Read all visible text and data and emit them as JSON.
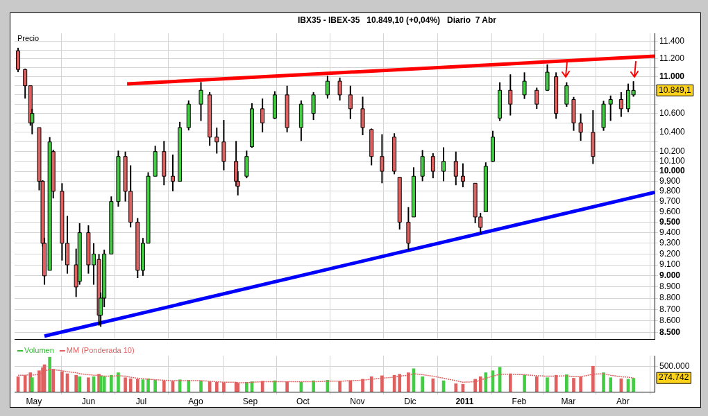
{
  "chart_data": [
    {
      "type": "candlestick",
      "title": "IBX35 - IBEX-35   10.849,10 (+0,04%)   Diario  7 Abr",
      "ylabel": "Precio",
      "x": [
        "2010-04-22",
        "2010-04-26",
        "2010-04-29",
        "2010-04-30",
        "2010-05-04",
        "2010-05-06",
        "2010-05-07",
        "2010-05-10",
        "2010-05-12",
        "2010-05-17",
        "2010-05-20",
        "2010-05-25",
        "2010-05-27",
        "2010-06-01",
        "2010-06-04",
        "2010-06-07",
        "2010-06-08",
        "2010-06-10",
        "2010-06-14",
        "2010-06-18",
        "2010-06-22",
        "2010-06-25",
        "2010-06-29",
        "2010-07-02",
        "2010-07-05",
        "2010-07-09",
        "2010-07-14",
        "2010-07-19",
        "2010-07-23",
        "2010-07-28",
        "2010-08-04",
        "2010-08-09",
        "2010-08-13",
        "2010-08-17",
        "2010-08-24",
        "2010-08-25",
        "2010-08-30",
        "2010-09-02",
        "2010-09-08",
        "2010-09-15",
        "2010-09-22",
        "2010-09-30",
        "2010-10-07",
        "2010-10-15",
        "2010-10-22",
        "2010-10-28",
        "2010-11-04",
        "2010-11-09",
        "2010-11-15",
        "2010-11-22",
        "2010-11-25",
        "2010-11-30",
        "2010-12-03",
        "2010-12-08",
        "2010-12-14",
        "2010-12-20",
        "2010-12-27",
        "2010-12-31",
        "2011-01-07",
        "2011-01-10",
        "2011-01-13",
        "2011-01-17",
        "2011-01-21",
        "2011-01-27",
        "2011-02-04",
        "2011-02-11",
        "2011-02-17",
        "2011-02-22",
        "2011-02-28",
        "2011-03-04",
        "2011-03-08",
        "2011-03-15",
        "2011-03-21",
        "2011-03-25",
        "2011-03-31",
        "2011-04-04",
        "2011-04-07"
      ],
      "ohlc": [
        [
          11290,
          11325,
          11050,
          11080
        ],
        [
          11080,
          11090,
          10760,
          10900
        ],
        [
          10900,
          10900,
          10470,
          10500
        ],
        [
          10500,
          10650,
          10380,
          10600
        ],
        [
          10450,
          10450,
          9810,
          9900
        ],
        [
          9900,
          9910,
          9270,
          9300
        ],
        [
          9300,
          9350,
          8920,
          9000
        ],
        [
          9050,
          10350,
          9050,
          10300
        ],
        [
          10200,
          10220,
          9730,
          9800
        ],
        [
          9800,
          9880,
          9140,
          9300
        ],
        [
          9300,
          9560,
          9020,
          9100
        ],
        [
          9100,
          9250,
          8810,
          8900
        ],
        [
          8950,
          9490,
          8920,
          9400
        ],
        [
          9400,
          9470,
          9020,
          9100
        ],
        [
          9100,
          9300,
          8920,
          9200
        ],
        [
          9150,
          9200,
          8560,
          8650
        ],
        [
          8650,
          8850,
          8550,
          8800
        ],
        [
          8800,
          9240,
          8720,
          9200
        ],
        [
          9200,
          9750,
          9200,
          9700
        ],
        [
          9700,
          10210,
          9650,
          10150
        ],
        [
          10150,
          10200,
          9700,
          9800
        ],
        [
          9800,
          10060,
          9450,
          9500
        ],
        [
          9500,
          9540,
          8980,
          9050
        ],
        [
          9050,
          9350,
          9000,
          9300
        ],
        [
          9300,
          9990,
          9300,
          9950
        ],
        [
          9950,
          10260,
          9950,
          10200
        ],
        [
          10200,
          10310,
          9860,
          9950
        ],
        [
          9950,
          10170,
          9800,
          9900
        ],
        [
          9900,
          10510,
          9900,
          10450
        ],
        [
          10450,
          10740,
          10420,
          10700
        ],
        [
          10700,
          10940,
          10520,
          10850
        ],
        [
          10800,
          10830,
          10260,
          10350
        ],
        [
          10350,
          10450,
          10180,
          10300
        ],
        [
          10300,
          10530,
          10010,
          10100
        ],
        [
          10100,
          10310,
          9850,
          9900
        ],
        [
          9900,
          10000,
          9760,
          9850
        ],
        [
          9950,
          10210,
          9930,
          10150
        ],
        [
          10250,
          10710,
          10240,
          10650
        ],
        [
          10650,
          10760,
          10400,
          10500
        ],
        [
          10550,
          10840,
          10540,
          10800
        ],
        [
          10800,
          10900,
          10400,
          10450
        ],
        [
          10450,
          10740,
          10310,
          10700
        ],
        [
          10600,
          10830,
          10530,
          10800
        ],
        [
          10800,
          11010,
          10760,
          10950
        ],
        [
          10950,
          10990,
          10740,
          10800
        ],
        [
          10800,
          10900,
          10540,
          10650
        ],
        [
          10650,
          10780,
          10370,
          10450
        ],
        [
          10430,
          10440,
          10060,
          10150
        ],
        [
          10150,
          10380,
          9880,
          10000
        ],
        [
          10350,
          10390,
          9970,
          10000
        ],
        [
          9940,
          9940,
          9430,
          9500
        ],
        [
          9500,
          9645,
          9235,
          9300
        ],
        [
          9550,
          10040,
          9550,
          9950
        ],
        [
          9950,
          10216,
          9900,
          10150
        ],
        [
          10150,
          10183,
          9930,
          10000
        ],
        [
          10000,
          10244,
          9900,
          10100
        ],
        [
          10100,
          10200,
          9860,
          9950
        ],
        [
          9950,
          10080,
          9840,
          9900
        ],
        [
          9880,
          9880,
          9490,
          9550
        ],
        [
          9550,
          9590,
          9390,
          9450
        ],
        [
          9600,
          10090,
          9600,
          10050
        ],
        [
          10100,
          10416,
          10094,
          10350
        ],
        [
          10550,
          10938,
          10521,
          10850
        ],
        [
          10850,
          11026,
          10578,
          10700
        ],
        [
          10800,
          11048,
          10756,
          10950
        ],
        [
          10850,
          10879,
          10649,
          10700
        ],
        [
          10850,
          11137,
          10843,
          11050
        ],
        [
          11000,
          11048,
          10543,
          10600
        ],
        [
          10700,
          10938,
          10671,
          10900
        ],
        [
          10750,
          10778,
          10416,
          10500
        ],
        [
          10500,
          10599,
          10312,
          10400
        ],
        [
          10400,
          10635,
          10074,
          10150
        ],
        [
          10450,
          10735,
          10416,
          10700
        ],
        [
          10700,
          10793,
          10521,
          10750
        ],
        [
          10750,
          10829,
          10563,
          10650
        ],
        [
          10650,
          10923,
          10613,
          10850
        ],
        [
          10800,
          10950,
          10780,
          10849.1
        ]
      ],
      "colors": [
        "#e06060",
        "#e06060",
        "#e06060",
        "#44cc44",
        "#e06060",
        "#e06060",
        "#e06060",
        "#44cc44",
        "#e06060",
        "#e06060",
        "#e06060",
        "#e06060",
        "#44cc44",
        "#e06060",
        "#44cc44",
        "#e06060",
        "#44cc44",
        "#44cc44",
        "#44cc44",
        "#44cc44",
        "#e06060",
        "#e06060",
        "#e06060",
        "#44cc44",
        "#44cc44",
        "#44cc44",
        "#e06060",
        "#e06060",
        "#44cc44",
        "#44cc44",
        "#44cc44",
        "#e06060",
        "#e06060",
        "#e06060",
        "#e06060",
        "#e06060",
        "#44cc44",
        "#44cc44",
        "#e06060",
        "#44cc44",
        "#e06060",
        "#44cc44",
        "#44cc44",
        "#44cc44",
        "#e06060",
        "#e06060",
        "#e06060",
        "#e06060",
        "#e06060",
        "#e06060",
        "#e06060",
        "#e06060",
        "#44cc44",
        "#44cc44",
        "#e06060",
        "#44cc44",
        "#e06060",
        "#e06060",
        "#e06060",
        "#e06060",
        "#44cc44",
        "#44cc44",
        "#44cc44",
        "#e06060",
        "#44cc44",
        "#e06060",
        "#44cc44",
        "#e06060",
        "#44cc44",
        "#e06060",
        "#e06060",
        "#e06060",
        "#44cc44",
        "#44cc44",
        "#e06060",
        "#44cc44",
        "#44cc44"
      ],
      "series": [
        {
          "type": "line",
          "color": "#ff0000",
          "x": [
            "2010-06-23",
            "2011-04-19"
          ],
          "values": [
            10920,
            11230
          ]
        },
        {
          "type": "line",
          "color": "#0000ff",
          "x": [
            "2010-05-07",
            "2011-04-19"
          ],
          "values": [
            8470,
            9790
          ]
        }
      ],
      "xlim": [
        "2010-04-20",
        "2011-04-19"
      ],
      "xticks": [
        {
          "value": "2010-05-01",
          "label": null
        },
        {
          "value": "2010-06-01",
          "label": null
        },
        {
          "value": "2010-07-01",
          "label": null
        },
        {
          "value": "2010-08-01",
          "label": null
        },
        {
          "value": "2010-09-01",
          "label": null
        },
        {
          "value": "2010-10-01",
          "label": null
        },
        {
          "value": "2010-11-01",
          "label": null
        },
        {
          "value": "2010-12-01",
          "label": null
        },
        {
          "value": "2011-01-01",
          "label": null
        },
        {
          "value": "2011-02-01",
          "label": null
        },
        {
          "value": "2011-03-01",
          "label": null
        },
        {
          "value": "2011-04-01",
          "label": null
        }
      ],
      "ylim": [
        8440,
        11490
      ],
      "yticks": [
        {
          "value": 8500,
          "label": "8.500"
        },
        {
          "value": 8600,
          "label": "8.600"
        },
        {
          "value": 8700,
          "label": "8.700"
        },
        {
          "value": 8800,
          "label": "8.800"
        },
        {
          "value": 8900,
          "label": "8.900"
        },
        {
          "value": 9000,
          "label": "9.000"
        },
        {
          "value": 9100,
          "label": "9.100"
        },
        {
          "value": 9200,
          "label": "9.200"
        },
        {
          "value": 9300,
          "label": "9.300"
        },
        {
          "value": 9400,
          "label": "9.400"
        },
        {
          "value": 9500,
          "label": "9.500"
        },
        {
          "value": 9600,
          "label": "9.600"
        },
        {
          "value": 9700,
          "label": "9.700"
        },
        {
          "value": 9800,
          "label": "9.800"
        },
        {
          "value": 9900,
          "label": "9.900"
        },
        {
          "value": 10000,
          "label": "10.000"
        },
        {
          "value": 10100,
          "label": "10.100"
        },
        {
          "value": 10200,
          "label": "10.200"
        },
        {
          "value": 10300,
          "label": null
        },
        {
          "value": 10400,
          "label": "10.400"
        },
        {
          "value": 10500,
          "label": null
        },
        {
          "value": 10600,
          "label": "10.600"
        },
        {
          "value": 10700,
          "label": null
        },
        {
          "value": 10800,
          "label": null
        },
        {
          "value": 10900,
          "label": null
        },
        {
          "value": 11000,
          "label": "11.000"
        },
        {
          "value": 11100,
          "label": null
        },
        {
          "value": 11200,
          "label": "11.200"
        },
        {
          "value": 11300,
          "label": null
        },
        {
          "value": 11400,
          "label": "11.400"
        }
      ],
      "log": true,
      "grid": true,
      "tick_labels": "y",
      "annotations": [
        "10.849,1"
      ]
    },
    {
      "type": "bar",
      "x": [
        "2010-04-22",
        "2010-04-26",
        "2010-04-29",
        "2010-04-30",
        "2010-05-04",
        "2010-05-06",
        "2010-05-07",
        "2010-05-10",
        "2010-05-12",
        "2010-05-17",
        "2010-05-20",
        "2010-05-25",
        "2010-05-27",
        "2010-06-01",
        "2010-06-04",
        "2010-06-07",
        "2010-06-08",
        "2010-06-10",
        "2010-06-14",
        "2010-06-18",
        "2010-06-22",
        "2010-06-25",
        "2010-06-29",
        "2010-07-02",
        "2010-07-05",
        "2010-07-09",
        "2010-07-14",
        "2010-07-19",
        "2010-07-23",
        "2010-07-28",
        "2010-08-04",
        "2010-08-09",
        "2010-08-13",
        "2010-08-17",
        "2010-08-24",
        "2010-08-25",
        "2010-08-30",
        "2010-09-02",
        "2010-09-08",
        "2010-09-15",
        "2010-09-22",
        "2010-09-30",
        "2010-10-07",
        "2010-10-15",
        "2010-10-22",
        "2010-10-28",
        "2010-11-04",
        "2010-11-09",
        "2010-11-15",
        "2010-11-22",
        "2010-11-25",
        "2010-11-30",
        "2010-12-03",
        "2010-12-08",
        "2010-12-14",
        "2010-12-20",
        "2010-12-27",
        "2010-12-31",
        "2011-01-07",
        "2011-01-10",
        "2011-01-13",
        "2011-01-17",
        "2011-01-21",
        "2011-01-27",
        "2011-02-04",
        "2011-02-11",
        "2011-02-17",
        "2011-02-22",
        "2011-02-28",
        "2011-03-04",
        "2011-03-08",
        "2011-03-15",
        "2011-03-21",
        "2011-03-25",
        "2011-03-31",
        "2011-04-04",
        "2011-04-07"
      ],
      "series": [
        {
          "name": "Volumen",
          "color": "#33bb33",
          "colors": [
            "#e06060",
            "#e06060",
            "#e06060",
            "#44cc44",
            "#e06060",
            "#e06060",
            "#e06060",
            "#44cc44",
            "#e06060",
            "#e06060",
            "#e06060",
            "#e06060",
            "#44cc44",
            "#e06060",
            "#44cc44",
            "#e06060",
            "#44cc44",
            "#44cc44",
            "#44cc44",
            "#44cc44",
            "#e06060",
            "#e06060",
            "#e06060",
            "#44cc44",
            "#44cc44",
            "#44cc44",
            "#e06060",
            "#e06060",
            "#44cc44",
            "#44cc44",
            "#44cc44",
            "#e06060",
            "#e06060",
            "#e06060",
            "#e06060",
            "#e06060",
            "#44cc44",
            "#44cc44",
            "#e06060",
            "#44cc44",
            "#e06060",
            "#44cc44",
            "#44cc44",
            "#44cc44",
            "#e06060",
            "#e06060",
            "#e06060",
            "#e06060",
            "#e06060",
            "#e06060",
            "#e06060",
            "#e06060",
            "#44cc44",
            "#44cc44",
            "#e06060",
            "#44cc44",
            "#e06060",
            "#e06060",
            "#e06060",
            "#e06060",
            "#44cc44",
            "#44cc44",
            "#44cc44",
            "#e06060",
            "#44cc44",
            "#e06060",
            "#44cc44",
            "#e06060",
            "#44cc44",
            "#e06060",
            "#e06060",
            "#e06060",
            "#44cc44",
            "#44cc44",
            "#e06060",
            "#44cc44",
            "#44cc44"
          ],
          "values": [
            300000,
            320000,
            380000,
            280000,
            420000,
            480000,
            540000,
            690000,
            450000,
            400000,
            360000,
            330000,
            300000,
            280000,
            300000,
            350000,
            320000,
            300000,
            330000,
            380000,
            280000,
            260000,
            250000,
            240000,
            260000,
            230000,
            220000,
            210000,
            240000,
            230000,
            220000,
            200000,
            190000,
            180000,
            190000,
            170000,
            190000,
            200000,
            210000,
            220000,
            200000,
            190000,
            220000,
            230000,
            210000,
            220000,
            250000,
            300000,
            320000,
            330000,
            350000,
            380000,
            460000,
            300000,
            260000,
            220000,
            160000,
            150000,
            250000,
            300000,
            380000,
            420000,
            490000,
            360000,
            330000,
            300000,
            280000,
            330000,
            340000,
            270000,
            300000,
            510000,
            380000,
            280000,
            260000,
            250000,
            270000
          ]
        },
        {
          "type": "line",
          "name": "MM (Ponderada 10)",
          "color": "#e06060",
          "line_style": "dashed",
          "values": [
            330000,
            330000,
            340000,
            330000,
            350000,
            380000,
            410000,
            450000,
            440000,
            420000,
            400000,
            380000,
            360000,
            340000,
            330000,
            330000,
            320000,
            310000,
            310000,
            320000,
            310000,
            290000,
            270000,
            260000,
            250000,
            240000,
            230000,
            220000,
            220000,
            220000,
            220000,
            210000,
            200000,
            190000,
            190000,
            180000,
            180000,
            190000,
            200000,
            200000,
            200000,
            200000,
            200000,
            210000,
            210000,
            220000,
            230000,
            250000,
            270000,
            290000,
            310000,
            330000,
            360000,
            340000,
            310000,
            270000,
            220000,
            190000,
            200000,
            230000,
            270000,
            310000,
            350000,
            350000,
            340000,
            320000,
            310000,
            310000,
            320000,
            300000,
            300000,
            350000,
            360000,
            330000,
            300000,
            290000,
            274742
          ]
        }
      ],
      "xlim": [
        "2010-04-20",
        "2011-04-19"
      ],
      "xticks": [
        {
          "value": "2010-05-01",
          "label": "May"
        },
        {
          "value": "2010-06-01",
          "label": "Jun"
        },
        {
          "value": "2010-07-01",
          "label": "Jul"
        },
        {
          "value": "2010-08-01",
          "label": "Ago"
        },
        {
          "value": "2010-09-01",
          "label": "Sep"
        },
        {
          "value": "2010-10-01",
          "label": "Oct"
        },
        {
          "value": "2010-11-01",
          "label": "Nov"
        },
        {
          "value": "2010-12-01",
          "label": "Dic"
        },
        {
          "value": "2011-01-01",
          "label": "2011"
        },
        {
          "value": "2011-02-01",
          "label": "Feb"
        },
        {
          "value": "2011-03-01",
          "label": "Mar"
        },
        {
          "value": "2011-04-01",
          "label": "Abr"
        }
      ],
      "ylim": [
        0,
        720000
      ],
      "yticks": [
        {
          "value": 500000,
          "label": "500.000"
        }
      ],
      "grid": true,
      "legend": "top left",
      "marker": "none",
      "annotations": [
        "274.742"
      ]
    }
  ]
}
